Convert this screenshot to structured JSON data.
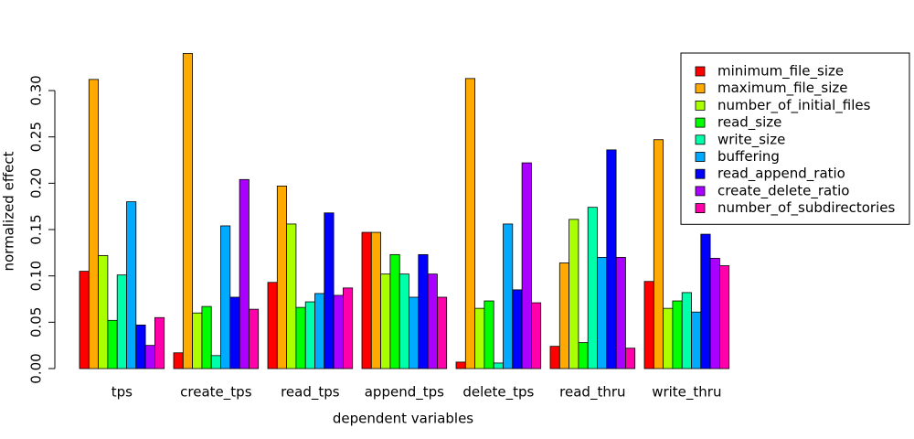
{
  "chart_data": {
    "type": "bar",
    "x_label": "dependent variables",
    "y_label": "normalized effect",
    "categories": [
      "tps",
      "create_tps",
      "read_tps",
      "append_tps",
      "delete_tps",
      "read_thru",
      "write_thru"
    ],
    "series": [
      {
        "name": "minimum_file_size",
        "color": "#ff0000",
        "values": [
          0.105,
          0.017,
          0.093,
          0.147,
          0.007,
          0.024,
          0.094
        ]
      },
      {
        "name": "maximum_file_size",
        "color": "#ffaa00",
        "values": [
          0.312,
          0.34,
          0.197,
          0.147,
          0.313,
          0.114,
          0.247
        ]
      },
      {
        "name": "number_of_initial_files",
        "color": "#aaff00",
        "values": [
          0.122,
          0.06,
          0.156,
          0.102,
          0.065,
          0.161,
          0.065
        ]
      },
      {
        "name": "read_size",
        "color": "#00ff00",
        "values": [
          0.052,
          0.067,
          0.066,
          0.123,
          0.073,
          0.028,
          0.073
        ]
      },
      {
        "name": "write_size",
        "color": "#00ffaa",
        "values": [
          0.101,
          0.014,
          0.072,
          0.102,
          0.006,
          0.174,
          0.082
        ]
      },
      {
        "name": "buffering",
        "color": "#00aaff",
        "values": [
          0.18,
          0.154,
          0.081,
          0.077,
          0.156,
          0.12,
          0.061
        ]
      },
      {
        "name": "read_append_ratio",
        "color": "#0000ff",
        "values": [
          0.047,
          0.077,
          0.168,
          0.123,
          0.085,
          0.236,
          0.145
        ]
      },
      {
        "name": "create_delete_ratio",
        "color": "#aa00ff",
        "values": [
          0.025,
          0.204,
          0.079,
          0.102,
          0.222,
          0.12,
          0.119
        ]
      },
      {
        "name": "number_of_subdirectories",
        "color": "#ff00aa",
        "values": [
          0.055,
          0.064,
          0.087,
          0.077,
          0.071,
          0.022,
          0.111
        ]
      }
    ],
    "ylim": [
      0,
      0.34
    ],
    "yticks": [
      {
        "value": 0,
        "label": "0.00"
      },
      {
        "value": 0.05,
        "label": "0.05"
      },
      {
        "value": 0.1,
        "label": "0.10"
      },
      {
        "value": 0.15,
        "label": "0.15"
      },
      {
        "value": 0.2,
        "label": "0.20"
      },
      {
        "value": 0.25,
        "label": "0.25"
      },
      {
        "value": 0.3,
        "label": "0.30"
      }
    ],
    "legend": "top-right"
  }
}
